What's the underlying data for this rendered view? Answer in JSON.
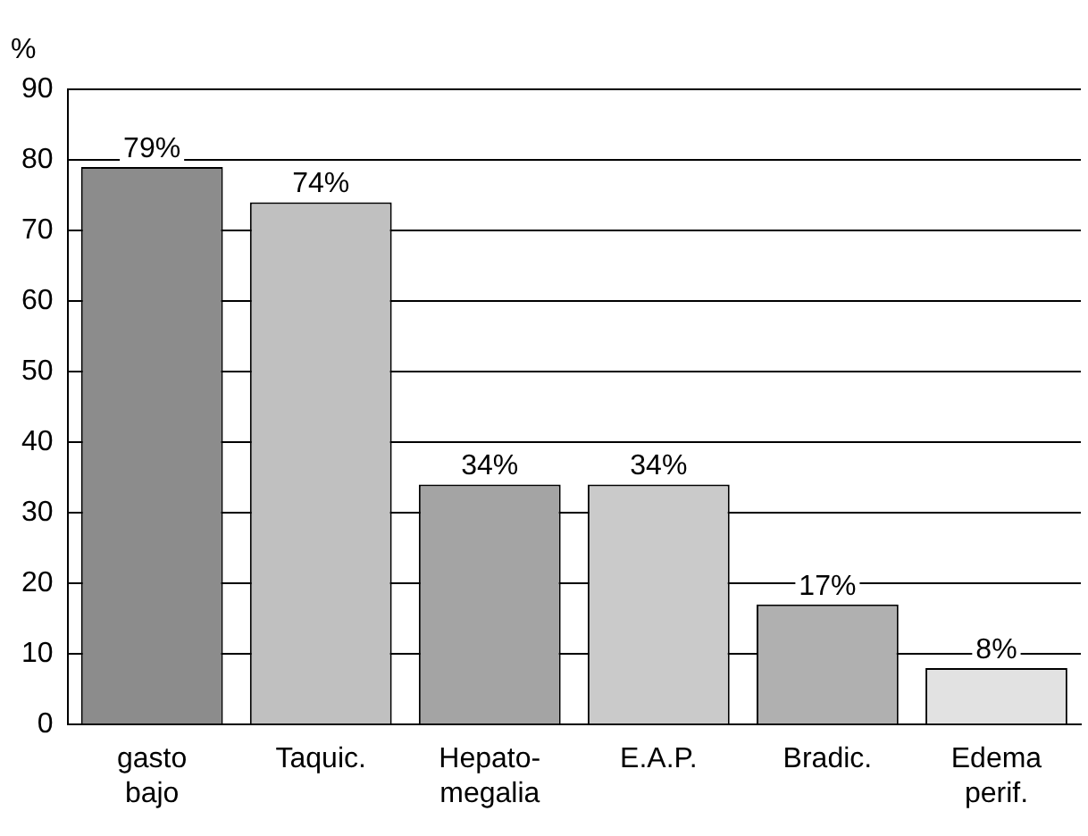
{
  "chart_data": {
    "type": "bar",
    "ylabel": "%",
    "categories": [
      "gasto\nbajo",
      "Taquic.",
      "Hepato-\nmegalia",
      "E.A.P.",
      "Bradic.",
      "Edema\nperif."
    ],
    "values": [
      79,
      74,
      34,
      34,
      17,
      8
    ],
    "colors": [
      "#8c8c8c",
      "#c0c0c0",
      "#a4a4a4",
      "#cacaca",
      "#b0b0b0",
      "#e2e2e2"
    ],
    "value_labels": [
      "79%",
      "74%",
      "34%",
      "34%",
      "17%",
      "8%"
    ],
    "ylim": [
      0,
      90
    ],
    "yticks": [
      0,
      10,
      20,
      30,
      40,
      50,
      60,
      70,
      80,
      90
    ],
    "grid": "y",
    "legend": false
  }
}
